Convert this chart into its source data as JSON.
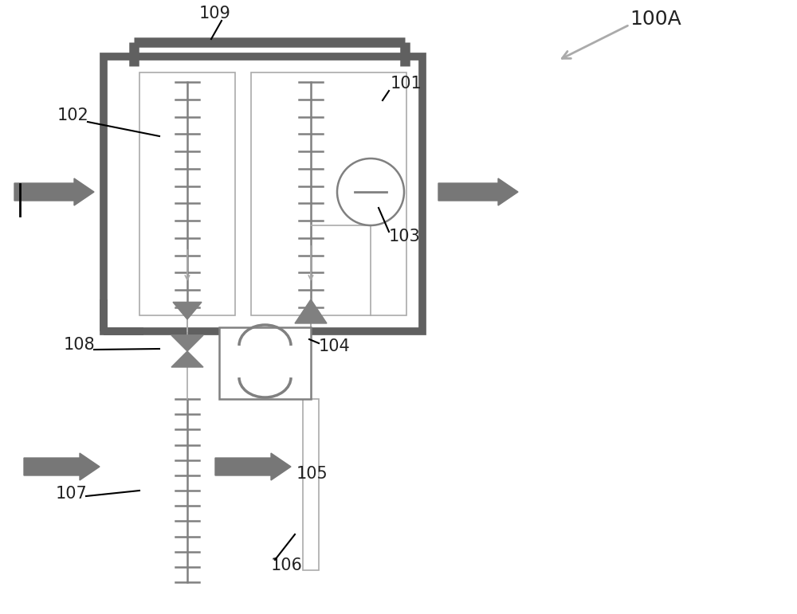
{
  "bg_color": "#ffffff",
  "dark_gray": "#606060",
  "mid_gray": "#808080",
  "light_gray": "#aaaaaa",
  "label_color": "#222222",
  "figsize": [
    10.0,
    7.71
  ],
  "dpi": 100,
  "arrow_color": "#777777",
  "label_fs": 15
}
